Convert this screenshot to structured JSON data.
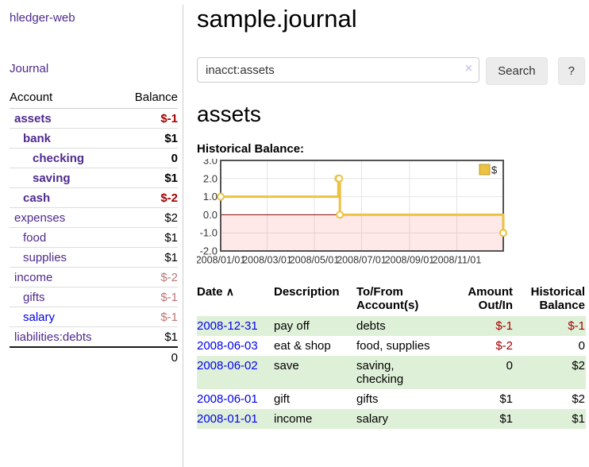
{
  "brand": "hledger-web",
  "sidebar": {
    "journal_link": "Journal",
    "table": {
      "account_header": "Account",
      "balance_header": "Balance",
      "accounts": [
        {
          "name": "assets",
          "level": 1,
          "bold": true,
          "balance": "$-1",
          "bal_style": "neg"
        },
        {
          "name": "bank",
          "level": 2,
          "bold": true,
          "balance": "$1",
          "bal_style": ""
        },
        {
          "name": "checking",
          "level": 3,
          "bold": true,
          "balance": "0",
          "bal_style": ""
        },
        {
          "name": "saving",
          "level": 3,
          "bold": true,
          "balance": "$1",
          "bal_style": ""
        },
        {
          "name": "cash",
          "level": 2,
          "bold": true,
          "balance": "$-2",
          "bal_style": "neg"
        },
        {
          "name": "expenses",
          "level": 1,
          "bold": false,
          "balance": "$2",
          "bal_style": ""
        },
        {
          "name": "food",
          "level": 2,
          "bold": false,
          "balance": "$1",
          "bal_style": ""
        },
        {
          "name": "supplies",
          "level": 2,
          "bold": false,
          "balance": "$1",
          "bal_style": ""
        },
        {
          "name": "income",
          "level": 1,
          "bold": false,
          "balance": "$-2",
          "bal_style": "dim"
        },
        {
          "name": "gifts",
          "level": 2,
          "bold": false,
          "balance": "$-1",
          "bal_style": "dim"
        },
        {
          "name": "salary",
          "level": 2,
          "bold": false,
          "balance": "$-1",
          "bal_style": "dim",
          "blue": true
        },
        {
          "name": "liabilities:debts",
          "level": 1,
          "bold": false,
          "balance": "$1",
          "bal_style": ""
        }
      ],
      "total": "0"
    }
  },
  "header": {
    "title": "sample.journal"
  },
  "search": {
    "query": "inacct:assets",
    "clear_icon": "×",
    "button_label": "Search",
    "help_label": "?"
  },
  "main": {
    "account_heading": "assets",
    "chart_title": "Historical Balance:"
  },
  "chart_data": {
    "type": "line",
    "step": true,
    "series": [
      {
        "name": "$",
        "x": [
          "2008-01-01",
          "2008-06-01",
          "2008-06-02",
          "2008-06-03",
          "2008-12-31"
        ],
        "values": [
          1,
          2,
          2,
          0,
          -1
        ]
      }
    ],
    "xlim": [
      "2008-01-01",
      "2008-12-31"
    ],
    "ylim": [
      -2,
      3
    ],
    "x_ticks": [
      "2008/01/01",
      "2008/03/01",
      "2008/05/01",
      "2008/07/01",
      "2008/09/01",
      "2008/11/01"
    ],
    "y_ticks": [
      "3.0",
      "2.0",
      "1.0",
      "0.0",
      "-1.0",
      "-2.0"
    ],
    "legend": "$",
    "legend_position": "top-right",
    "grid": true,
    "line_color": "#EDC240",
    "marker_fill": "#ffffff",
    "legend_border": "#b89b30",
    "zero_line_color": "#8b0000",
    "negative_region_color": "rgba(255,0,0,0.09)",
    "grid_color": "#e4e4e4",
    "border_color": "#545454"
  },
  "journal": {
    "columns": [
      "Date",
      "Description",
      "To/From Account(s)",
      "Amount Out/In",
      "Historical Balance"
    ],
    "sort_icon": "∧",
    "rows": [
      {
        "date": "2008-12-31",
        "description": "pay off",
        "accounts": "debts",
        "amount": "$-1",
        "amount_negative": true,
        "balance": "$-1",
        "balance_negative": true
      },
      {
        "date": "2008-06-03",
        "description": "eat & shop",
        "accounts": "food, supplies",
        "amount": "$-2",
        "amount_negative": true,
        "balance": "0",
        "balance_negative": false
      },
      {
        "date": "2008-06-02",
        "description": "save",
        "accounts": "saving, checking",
        "amount": "0",
        "amount_negative": false,
        "balance": "$2",
        "balance_negative": false
      },
      {
        "date": "2008-06-01",
        "description": "gift",
        "accounts": "gifts",
        "amount": "$1",
        "amount_negative": false,
        "balance": "$2",
        "balance_negative": false
      },
      {
        "date": "2008-01-01",
        "description": "income",
        "accounts": "salary",
        "amount": "$1",
        "amount_negative": false,
        "balance": "$1",
        "balance_negative": false
      }
    ]
  },
  "colors": {
    "link_purple": "#4e2a8e",
    "link_blue": "#0000ee",
    "negative_red": "#a40000",
    "negative_faded": "#bd7676",
    "row_green": "#dff0d8"
  }
}
